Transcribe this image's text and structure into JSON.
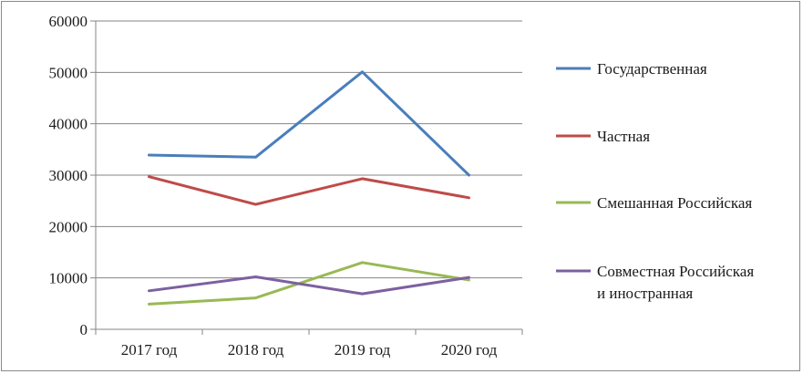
{
  "chart_data": {
    "type": "line",
    "categories": [
      "2017 год",
      "2018 год",
      "2019 год",
      "2020 год"
    ],
    "ylim": [
      0,
      60000
    ],
    "yticks": [
      "0",
      "10000",
      "20000",
      "30000",
      "40000",
      "50000",
      "60000"
    ],
    "grid": true,
    "legend_position": "right",
    "series": [
      {
        "name": "Государственная",
        "color": "#4a7ebb",
        "values": [
          33900,
          33500,
          50100,
          30000
        ]
      },
      {
        "name": "Частная",
        "color": "#be4b48",
        "values": [
          29700,
          24300,
          29300,
          25600
        ]
      },
      {
        "name": "Смешанная Российская",
        "color": "#98b954",
        "values": [
          4900,
          6100,
          13000,
          9600
        ]
      },
      {
        "name": "Совместная Российская и иностранная",
        "color": "#7d60a0",
        "values": [
          7500,
          10200,
          6900,
          10100
        ]
      }
    ],
    "legend_lines": [
      [
        "Государственная"
      ],
      [
        "Частная"
      ],
      [
        "Смешанная Российская"
      ],
      [
        "Совместная Российская",
        "и иностранная"
      ]
    ]
  }
}
